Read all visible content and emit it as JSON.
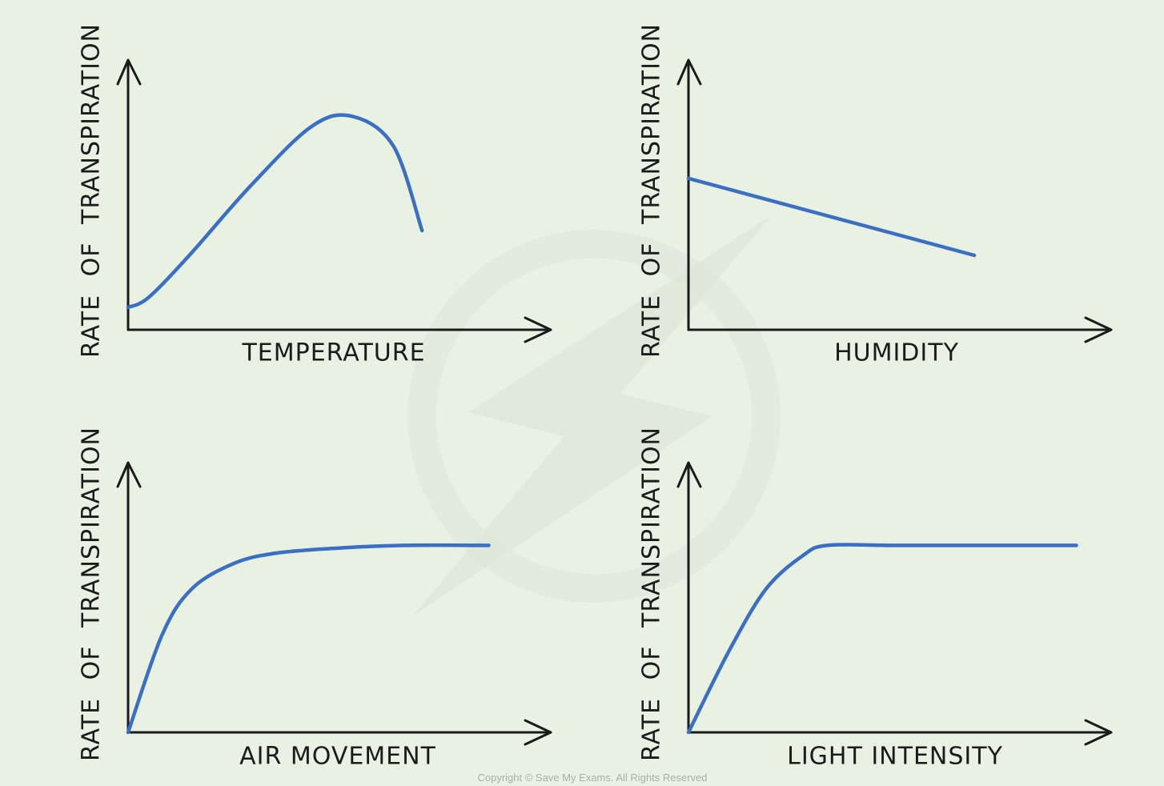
{
  "chart_data": [
    {
      "type": "line",
      "title": "",
      "xlabel": "TEMPERATURE",
      "ylabel": "RATE OF TRANSPIRATION",
      "ticks": "none",
      "grid": false,
      "xlim": [
        0,
        10
      ],
      "ylim": [
        0,
        10
      ],
      "series": [
        {
          "x": [
            0,
            0.5,
            1.5,
            3,
            4.5,
            5.5,
            6.5,
            7.2
          ],
          "y": [
            0.9,
            1.3,
            3,
            5.8,
            8.2,
            8.6,
            7.4,
            4
          ]
        }
      ]
    },
    {
      "type": "line",
      "title": "",
      "xlabel": "HUMIDITY",
      "ylabel": "RATE OF TRANSPIRATION",
      "ticks": "none",
      "grid": false,
      "xlim": [
        0,
        10
      ],
      "ylim": [
        0,
        10
      ],
      "series": [
        {
          "x": [
            0,
            7
          ],
          "y": [
            6.1,
            3
          ]
        }
      ]
    },
    {
      "type": "line",
      "title": "",
      "xlabel": "AIR MOVEMENT",
      "ylabel": "RATE OF TRANSPIRATION",
      "ticks": "none",
      "grid": false,
      "xlim": [
        0,
        10
      ],
      "ylim": [
        0,
        10
      ],
      "series": [
        {
          "x": [
            0,
            0.8,
            1.5,
            2.5,
            3.5,
            5,
            6.5,
            8.5
          ],
          "y": [
            0,
            3.8,
            5.6,
            6.6,
            7,
            7.2,
            7.3,
            7.3
          ]
        }
      ]
    },
    {
      "type": "line",
      "title": "",
      "xlabel": "LIGHT INTENSITY",
      "ylabel": "RATE OF TRANSPIRATION",
      "ticks": "none",
      "grid": false,
      "xlim": [
        0,
        10
      ],
      "ylim": [
        0,
        10
      ],
      "series": [
        {
          "x": [
            0,
            1,
            1.9,
            2.8,
            3.4,
            5,
            7,
            9.5
          ],
          "y": [
            0,
            3.2,
            5.6,
            6.9,
            7.3,
            7.3,
            7.3,
            7.3
          ]
        }
      ]
    }
  ],
  "footer": {
    "copyright": "Copyright © Save My Exams. All Rights Reserved"
  },
  "colors": {
    "background": "#e9f1e3",
    "curve": "#3a6fc4",
    "axis": "#1b1b1b"
  }
}
